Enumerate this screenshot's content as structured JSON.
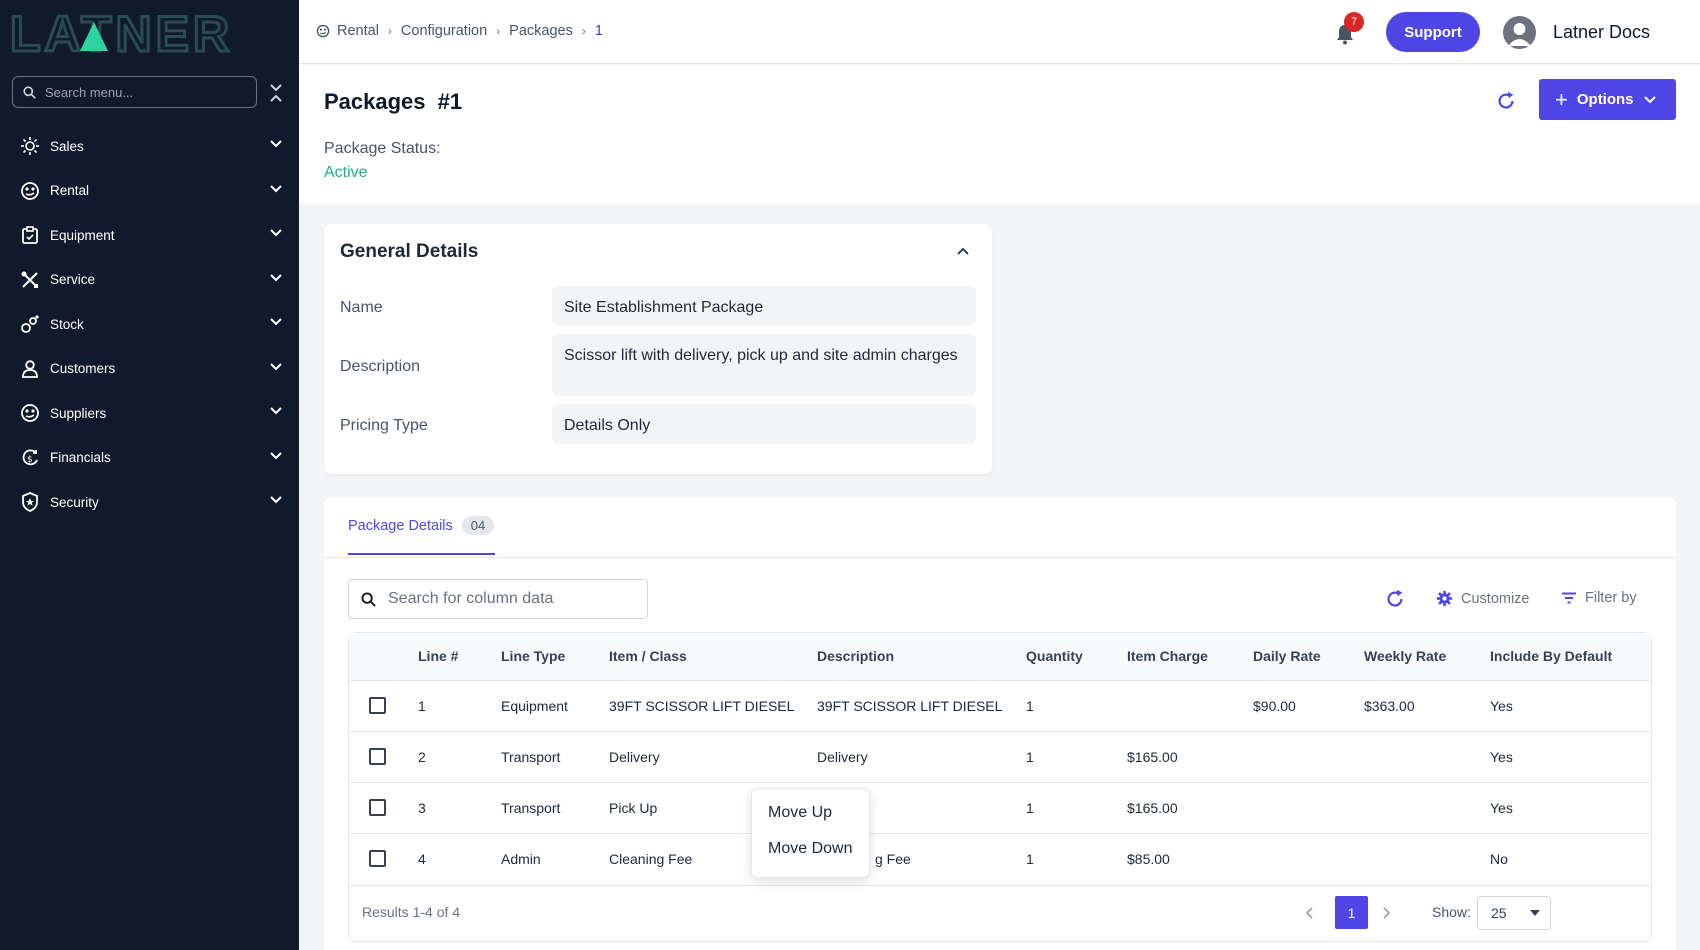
{
  "sidebar": {
    "logo_text": "LATNER",
    "search_placeholder": "Search menu...",
    "items": [
      {
        "label": "Sales",
        "icon": "sales-icon"
      },
      {
        "label": "Rental",
        "icon": "rental-icon"
      },
      {
        "label": "Equipment",
        "icon": "equipment-icon"
      },
      {
        "label": "Service",
        "icon": "service-icon"
      },
      {
        "label": "Stock",
        "icon": "stock-icon"
      },
      {
        "label": "Customers",
        "icon": "customers-icon"
      },
      {
        "label": "Suppliers",
        "icon": "suppliers-icon"
      },
      {
        "label": "Financials",
        "icon": "financials-icon"
      },
      {
        "label": "Security",
        "icon": "security-icon"
      }
    ]
  },
  "topbar": {
    "breadcrumb": [
      "Rental",
      "Configuration",
      "Packages",
      "1"
    ],
    "notification_count": "7",
    "support_label": "Support",
    "user_name": "Latner Docs"
  },
  "header": {
    "title": "Packages",
    "record_id": "#1",
    "status_label": "Package Status:",
    "status_value": "Active",
    "options_label": "Options"
  },
  "general": {
    "title": "General Details",
    "fields": [
      {
        "label": "Name",
        "value": "Site Establishment Package"
      },
      {
        "label": "Description",
        "value": "Scissor lift with delivery, pick up and site admin charges"
      },
      {
        "label": "Pricing Type",
        "value": "Details Only"
      }
    ]
  },
  "package_details": {
    "tab_label": "Package Details",
    "tab_count": "04",
    "search_placeholder": "Search for column data",
    "customize_label": "Customize",
    "filter_label": "Filter by",
    "columns": [
      "Line #",
      "Line Type",
      "Item / Class",
      "Description",
      "Quantity",
      "Item Charge",
      "Daily Rate",
      "Weekly Rate",
      "Include By Default"
    ],
    "rows": [
      {
        "line": "1",
        "type": "Equipment",
        "item": "39FT SCISSOR LIFT DIESEL",
        "description": "39FT SCISSOR LIFT DIESEL",
        "quantity": "1",
        "charge": "",
        "daily": "$90.00",
        "weekly": "$363.00",
        "include": "Yes"
      },
      {
        "line": "2",
        "type": "Transport",
        "item": "Delivery",
        "description": "Delivery",
        "quantity": "1",
        "charge": "$165.00",
        "daily": "",
        "weekly": "",
        "include": "Yes"
      },
      {
        "line": "3",
        "type": "Transport",
        "item": "Pick Up",
        "description": "",
        "quantity": "1",
        "charge": "$165.00",
        "daily": "",
        "weekly": "",
        "include": "Yes"
      },
      {
        "line": "4",
        "type": "Admin",
        "item": "Cleaning Fee",
        "description": "g Fee",
        "quantity": "1",
        "charge": "$85.00",
        "daily": "",
        "weekly": "",
        "include": "No"
      }
    ],
    "results_text": "Results 1-4 of 4",
    "current_page": "1",
    "show_label": "Show:",
    "page_size": "25"
  },
  "context_menu": {
    "items": [
      "Move Up",
      "Move Down"
    ]
  },
  "colors": {
    "sidebar_bg": "#111a2b",
    "accent": "#4f46e5",
    "status_active": "#10b981",
    "badge_red": "#dc2626"
  }
}
